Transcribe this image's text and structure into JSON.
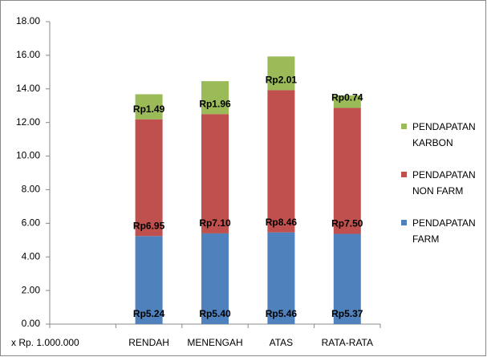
{
  "chart_data": {
    "type": "stacked_bar",
    "categories": [
      null,
      "RENDAH",
      "MENENGAH",
      "ATAS",
      "RATA-RATA"
    ],
    "unit_label": "x Rp. 1.000.000",
    "series": [
      {
        "name": "PENDAPATAN FARM",
        "color": "#4f81bd",
        "values": [
          null,
          5.24,
          5.4,
          5.46,
          5.37
        ],
        "value_labels": [
          null,
          "Rp5.24",
          "Rp5.40",
          "Rp5.46",
          "Rp5.37"
        ]
      },
      {
        "name": "PENDAPATAN NON FARM",
        "color": "#c0504d",
        "values": [
          null,
          6.95,
          7.1,
          8.46,
          7.5
        ],
        "value_labels": [
          null,
          "Rp6.95",
          "Rp7.10",
          "Rp8.46",
          "Rp7.50"
        ]
      },
      {
        "name": "PENDAPATAN KARBON",
        "color": "#9bbb59",
        "values": [
          null,
          1.49,
          1.96,
          2.01,
          0.74
        ],
        "value_labels": [
          null,
          "Rp1.49",
          "Rp1.96",
          "Rp2.01",
          "Rp0.74"
        ]
      }
    ],
    "ylim": [
      0,
      18
    ],
    "yticks": [
      {
        "value": 0,
        "label": "0.00"
      },
      {
        "value": 2,
        "label": "2.00"
      },
      {
        "value": 4,
        "label": "4.00"
      },
      {
        "value": 6,
        "label": "6.00"
      },
      {
        "value": 8,
        "label": "8.00"
      },
      {
        "value": 10,
        "label": "10.00"
      },
      {
        "value": 12,
        "label": "12.00"
      },
      {
        "value": 14,
        "label": "14.00"
      },
      {
        "value": 16,
        "label": "16.00"
      },
      {
        "value": 18,
        "label": "18.00"
      }
    ],
    "grid": false,
    "legend": "right"
  }
}
